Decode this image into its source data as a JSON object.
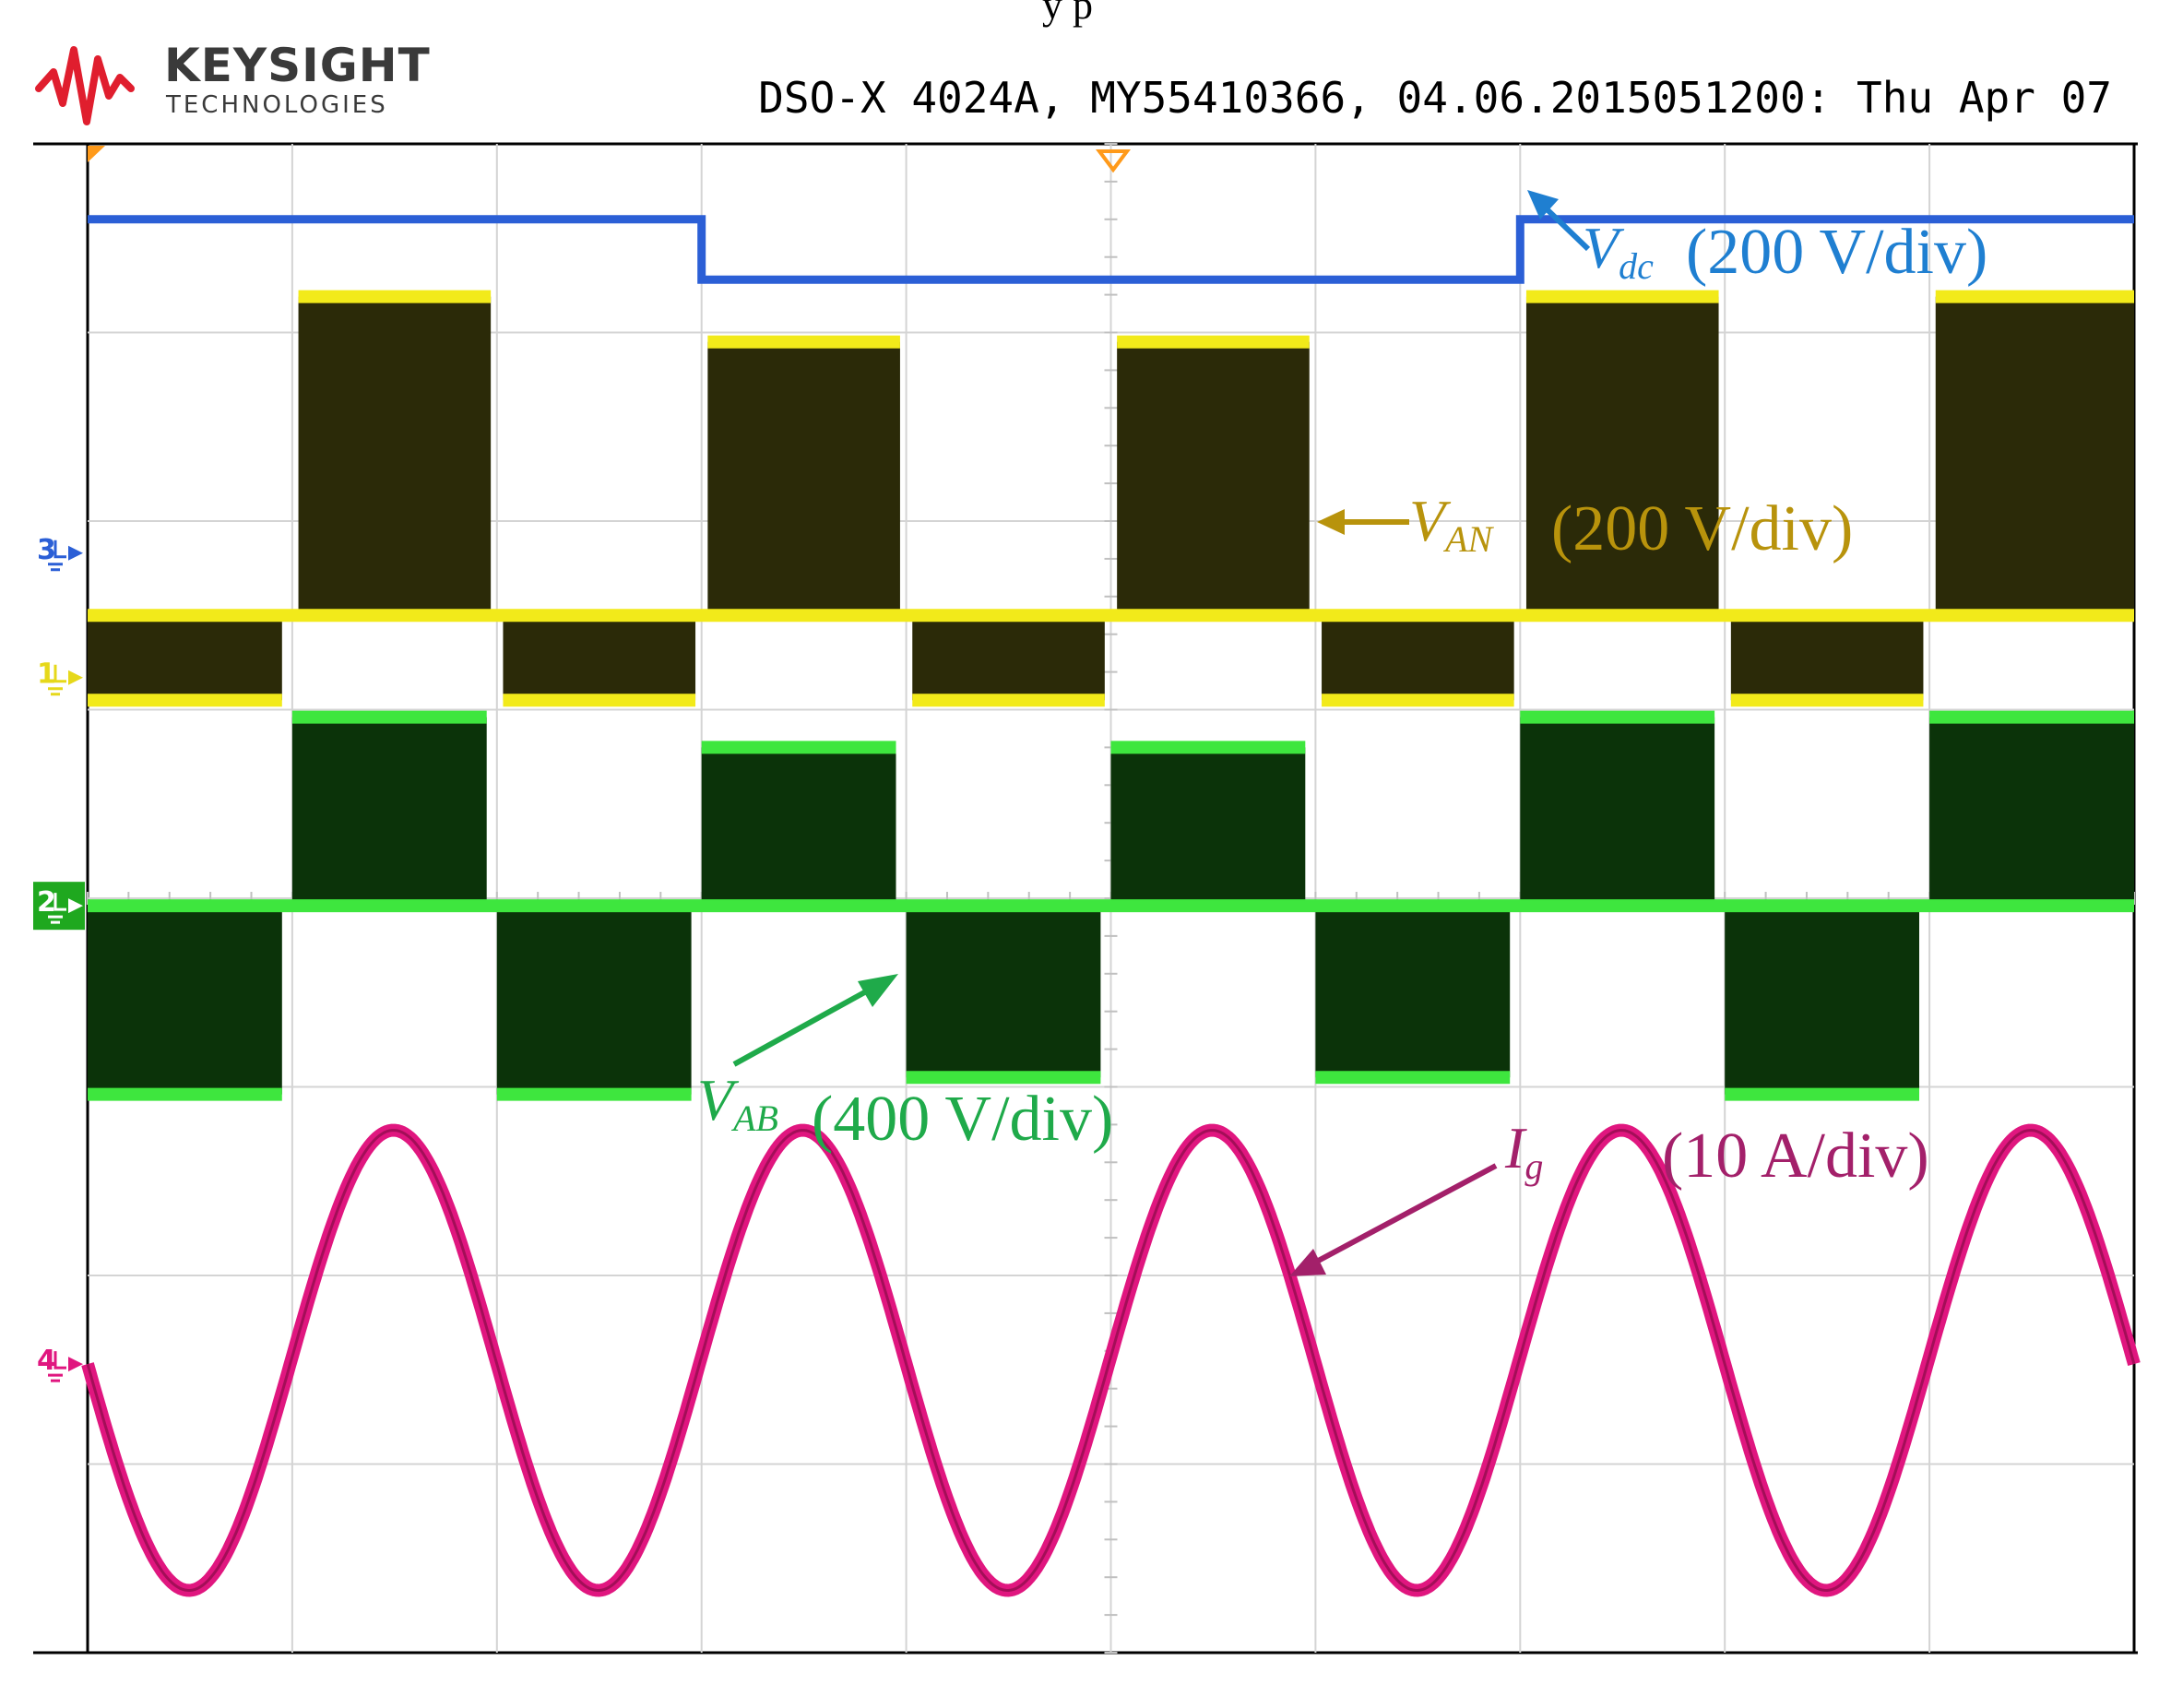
{
  "header": {
    "brand": "KEYSIGHT",
    "brand_sub": "TECHNOLOGIES",
    "instrument_line": "DSO-X 4024A, MY55410366, 04.06.2015051200: Thu Apr 07",
    "cropped_caption": "y          p"
  },
  "colors": {
    "ch1": "#f2ea1a",
    "ch2": "#3ee63e",
    "ch3": "#2b5fd6",
    "ch4": "#e0167f",
    "ch1_fill": "#2b2a08",
    "ch2_fill": "#0b3309",
    "label_dc": "#1f7fd1",
    "label_an": "#b8930c",
    "label_ab": "#1faa4a",
    "label_ig": "#a3206a",
    "logo": "#e01e2e"
  },
  "channel_markers": [
    {
      "id": "ch3",
      "label": "3",
      "color": "#2b5fd6"
    },
    {
      "id": "ch1",
      "label": "1",
      "color": "#e6d81a"
    },
    {
      "id": "ch2",
      "label": "2",
      "color": "#1fa81f"
    },
    {
      "id": "ch4",
      "label": "4",
      "color": "#e0167f"
    }
  ],
  "annotations": {
    "vdc": {
      "symbol": "V",
      "sub": "dc",
      "scale": "(200 V/div)"
    },
    "van": {
      "symbol": "V",
      "sub": "AN",
      "scale": "(200 V/div)"
    },
    "vab": {
      "symbol": "V",
      "sub": "AB",
      "scale": "(400 V/div)"
    },
    "ig": {
      "symbol": "I",
      "sub": "g",
      "scale": "(10 A/div)"
    }
  },
  "chart_data": {
    "type": "line",
    "title": "",
    "xlabel": "",
    "ylabel": "",
    "grid": true,
    "x_divisions": 10,
    "y_divisions": 8,
    "xlim": [
      0,
      10
    ],
    "series": [
      {
        "name": "Vdc (200 V/div)",
        "channel": 3,
        "units": "div",
        "segments": [
          {
            "x_start": 0,
            "x_end": 3.0,
            "level": 7.6
          },
          {
            "x_start": 3.0,
            "x_end": 7.0,
            "level": 7.28
          },
          {
            "x_start": 7.0,
            "x_end": 10,
            "level": 7.6
          }
        ]
      },
      {
        "name": "VAN (200 V/div)",
        "channel": 1,
        "units": "div",
        "baseline": 5.5,
        "blocks": [
          {
            "x_start": 0.0,
            "x_end": 0.95,
            "level": 5.05
          },
          {
            "x_start": 1.03,
            "x_end": 1.97,
            "level": 7.19
          },
          {
            "x_start": 2.03,
            "x_end": 2.97,
            "level": 5.05
          },
          {
            "x_start": 3.03,
            "x_end": 3.97,
            "level": 6.95
          },
          {
            "x_start": 4.03,
            "x_end": 4.97,
            "level": 5.05
          },
          {
            "x_start": 5.03,
            "x_end": 5.97,
            "level": 6.95
          },
          {
            "x_start": 6.03,
            "x_end": 6.97,
            "level": 5.05
          },
          {
            "x_start": 7.03,
            "x_end": 7.97,
            "level": 7.19
          },
          {
            "x_start": 8.03,
            "x_end": 8.97,
            "level": 5.05
          },
          {
            "x_start": 9.03,
            "x_end": 10.0,
            "level": 7.19
          }
        ]
      },
      {
        "name": "VAB (400 V/div)",
        "channel": 2,
        "units": "div",
        "baseline": 3.96,
        "blocks": [
          {
            "x_start": 0.0,
            "x_end": 0.95,
            "level": 2.96
          },
          {
            "x_start": 1.0,
            "x_end": 1.95,
            "level": 4.96
          },
          {
            "x_start": 2.0,
            "x_end": 2.95,
            "level": 2.96
          },
          {
            "x_start": 3.0,
            "x_end": 3.95,
            "level": 4.8
          },
          {
            "x_start": 4.0,
            "x_end": 4.95,
            "level": 3.05
          },
          {
            "x_start": 5.0,
            "x_end": 5.95,
            "level": 4.8
          },
          {
            "x_start": 6.0,
            "x_end": 6.95,
            "level": 3.05
          },
          {
            "x_start": 7.0,
            "x_end": 7.95,
            "level": 4.96
          },
          {
            "x_start": 8.0,
            "x_end": 8.95,
            "level": 2.96
          },
          {
            "x_start": 9.0,
            "x_end": 10.0,
            "level": 4.96
          }
        ]
      },
      {
        "name": "Ig (10 A/div)",
        "channel": 4,
        "units": "div",
        "type": "sine",
        "offset": 1.55,
        "amplitude": 1.22,
        "cycles": 5,
        "start_x": 0,
        "start_level": 1.53,
        "initial_direction": "falling"
      }
    ]
  }
}
